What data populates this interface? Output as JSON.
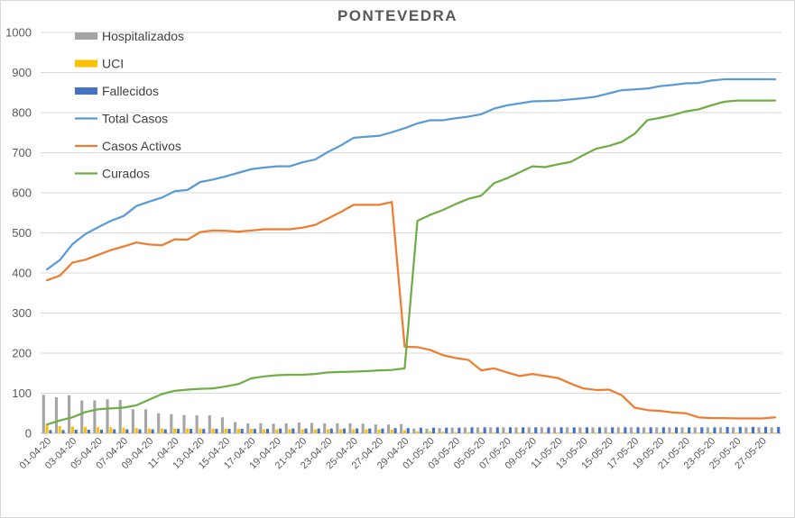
{
  "chart_data": {
    "type": "line",
    "title": "PONTEVEDRA",
    "xlabel": "",
    "ylabel": "",
    "ylim": [
      0,
      1000
    ],
    "yticks": [
      0,
      100,
      200,
      300,
      400,
      500,
      600,
      700,
      800,
      900,
      1000
    ],
    "grid": true,
    "legend_position": "top-left",
    "x_tick_labels": [
      "01-04-20",
      "03-04-20",
      "05-04-20",
      "07-04-20",
      "09-04-20",
      "11-04-20",
      "13-04-20",
      "15-04-20",
      "17-04-20",
      "19-04-20",
      "21-04-20",
      "23-04-20",
      "25-04-20",
      "27-04-20",
      "29-04-20",
      "01-05-20",
      "03-05-20",
      "05-05-20",
      "07-05-20",
      "09-05-20",
      "11-05-20",
      "13-05-20",
      "15-05-20",
      "17-05-20",
      "19-05-20",
      "21-05-20",
      "23-05-20",
      "25-05-20",
      "27-05-20"
    ],
    "series": [
      {
        "name": "Hospitalizados",
        "kind": "bar",
        "color": "#a5a5a5",
        "values": [
          96,
          90,
          95,
          82,
          82,
          85,
          83,
          60,
          60,
          50,
          48,
          46,
          45,
          45,
          40,
          28,
          25,
          25,
          24,
          25,
          27,
          26,
          25,
          25,
          25,
          24,
          22,
          22,
          23,
          12,
          12,
          13,
          14,
          15,
          15,
          15,
          15,
          15,
          15,
          15,
          15,
          15,
          15,
          15,
          15,
          15,
          15,
          15,
          15,
          15,
          15,
          15,
          15,
          15,
          15,
          15,
          15,
          15
        ]
      },
      {
        "name": "UCI",
        "kind": "bar",
        "color": "#ffc000",
        "values": [
          20,
          18,
          17,
          16,
          15,
          15,
          14,
          13,
          12,
          12,
          12,
          12,
          12,
          12,
          12,
          11,
          11,
          10,
          10,
          10,
          10,
          10,
          10,
          10,
          10,
          10,
          9,
          9,
          8,
          5,
          5,
          4,
          3,
          3,
          3,
          2,
          2,
          2,
          2,
          2,
          2,
          2,
          2,
          2,
          2,
          2,
          2,
          2,
          2,
          2,
          2,
          2,
          2,
          2,
          2,
          2,
          2,
          2
        ]
      },
      {
        "name": "Fallecidos",
        "kind": "bar",
        "color": "#4472c4",
        "values": [
          8,
          8,
          9,
          9,
          9,
          10,
          10,
          10,
          10,
          10,
          11,
          11,
          11,
          11,
          11,
          11,
          11,
          11,
          12,
          12,
          12,
          12,
          12,
          12,
          12,
          12,
          12,
          13,
          13,
          14,
          14,
          14,
          14,
          15,
          15,
          15,
          15,
          15,
          15,
          15,
          15,
          15,
          15,
          15,
          15,
          15,
          15,
          15,
          15,
          15,
          15,
          15,
          15,
          16,
          16,
          16,
          16,
          16
        ]
      },
      {
        "name": "Total Casos",
        "kind": "line",
        "color": "#5b9bd5",
        "values": [
          409,
          432,
          472,
          497,
          514,
          530,
          542,
          567,
          578,
          588,
          604,
          607,
          627,
          633,
          641,
          650,
          659,
          663,
          666,
          666,
          676,
          683,
          702,
          718,
          737,
          740,
          742,
          751,
          761,
          773,
          781,
          781,
          786,
          790,
          796,
          810,
          818,
          823,
          828,
          829,
          830,
          833,
          836,
          840,
          848,
          856,
          858,
          860,
          866,
          869,
          873,
          874,
          880,
          883,
          883,
          883,
          883,
          883
        ]
      },
      {
        "name": "Casos Activos",
        "kind": "line",
        "color": "#ed7d31",
        "values": [
          382,
          393,
          426,
          433,
          445,
          457,
          466,
          476,
          471,
          469,
          484,
          483,
          502,
          506,
          505,
          503,
          506,
          509,
          509,
          509,
          513,
          520,
          536,
          552,
          570,
          570,
          570,
          577,
          216,
          215,
          208,
          195,
          188,
          183,
          157,
          162,
          152,
          143,
          148,
          143,
          138,
          124,
          112,
          108,
          109,
          95,
          64,
          58,
          56,
          52,
          50,
          40,
          38,
          38,
          37,
          37,
          37,
          40
        ]
      },
      {
        "name": "Curados",
        "kind": "line",
        "color": "#70ad47",
        "values": [
          22,
          32,
          40,
          53,
          60,
          62,
          64,
          70,
          84,
          98,
          106,
          109,
          111,
          112,
          117,
          123,
          137,
          142,
          145,
          146,
          146,
          148,
          152,
          153,
          154,
          155,
          157,
          158,
          162,
          530,
          545,
          557,
          572,
          585,
          593,
          624,
          636,
          651,
          666,
          664,
          671,
          677,
          694,
          710,
          717,
          727,
          747,
          781,
          787,
          794,
          803,
          808,
          818,
          827,
          830,
          830,
          830,
          830
        ]
      }
    ]
  }
}
